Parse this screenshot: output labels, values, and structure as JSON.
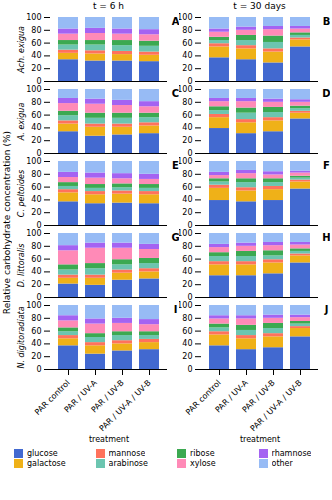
{
  "chart_data": [
    {
      "type": "bar",
      "stacked": true,
      "title": "A",
      "subtitle": "t = 6 h",
      "ylabel": "Ach. exigua",
      "tick_labels": "y",
      "grid": false,
      "categories": [
        "PAR control",
        "PAR / UV-A",
        "PAR / UV-B",
        "PAR / UV-A / UV-B"
      ],
      "ylim": [
        0,
        100
      ],
      "yticks": [
        0,
        20,
        40,
        60,
        80,
        100
      ],
      "series": [
        {
          "name": "glucose",
          "values": [
            34,
            32,
            32,
            31
          ]
        },
        {
          "name": "galactose",
          "values": [
            10,
            11,
            10,
            10
          ]
        },
        {
          "name": "mannose",
          "values": [
            5,
            5,
            5,
            5
          ]
        },
        {
          "name": "arabinose",
          "values": [
            8,
            9,
            9,
            9
          ]
        },
        {
          "name": "ribose",
          "values": [
            7,
            7,
            8,
            8
          ]
        },
        {
          "name": "xylose",
          "values": [
            10,
            11,
            10,
            10
          ]
        },
        {
          "name": "rhamnose",
          "values": [
            8,
            8,
            8,
            8
          ]
        },
        {
          "name": "other",
          "values": [
            18,
            17,
            18,
            19
          ]
        }
      ]
    },
    {
      "type": "bar",
      "stacked": true,
      "title": "B",
      "subtitle": "t = 30 days",
      "tick_labels": "y",
      "grid": false,
      "categories": [
        "PAR control",
        "PAR / UV-A",
        "PAR / UV-B",
        "PAR / UV-A / UV-B"
      ],
      "ylim": [
        0,
        100
      ],
      "yticks": [
        0,
        20,
        40,
        60,
        80,
        100
      ],
      "series": [
        {
          "name": "glucose",
          "values": [
            37,
            34,
            29,
            54
          ]
        },
        {
          "name": "galactose",
          "values": [
            17,
            17,
            17,
            11
          ]
        },
        {
          "name": "mannose",
          "values": [
            5,
            5,
            5,
            3
          ]
        },
        {
          "name": "arabinose",
          "values": [
            5,
            8,
            10,
            4
          ]
        },
        {
          "name": "ribose",
          "values": [
            5,
            8,
            10,
            4
          ]
        },
        {
          "name": "xylose",
          "values": [
            8,
            8,
            10,
            6
          ]
        },
        {
          "name": "rhamnose",
          "values": [
            5,
            5,
            5,
            4
          ]
        },
        {
          "name": "other",
          "values": [
            18,
            15,
            14,
            14
          ]
        }
      ]
    },
    {
      "type": "bar",
      "stacked": true,
      "title": "C",
      "ylabel": "A. exigua",
      "tick_labels": "y",
      "grid": false,
      "categories": [
        "PAR control",
        "PAR / UV-A",
        "PAR / UV-B",
        "PAR / UV-A / UV-B"
      ],
      "ylim": [
        0,
        100
      ],
      "yticks": [
        0,
        20,
        40,
        60,
        80,
        100
      ],
      "series": [
        {
          "name": "glucose",
          "values": [
            34,
            27,
            29,
            31
          ]
        },
        {
          "name": "galactose",
          "values": [
            12,
            14,
            12,
            12
          ]
        },
        {
          "name": "mannose",
          "values": [
            5,
            5,
            5,
            5
          ]
        },
        {
          "name": "arabinose",
          "values": [
            8,
            9,
            9,
            8
          ]
        },
        {
          "name": "ribose",
          "values": [
            7,
            8,
            8,
            7
          ]
        },
        {
          "name": "xylose",
          "values": [
            12,
            14,
            12,
            10
          ]
        },
        {
          "name": "rhamnose",
          "values": [
            8,
            8,
            8,
            8
          ]
        },
        {
          "name": "other",
          "values": [
            14,
            15,
            17,
            19
          ]
        }
      ]
    },
    {
      "type": "bar",
      "stacked": true,
      "title": "D",
      "tick_labels": "y",
      "grid": false,
      "categories": [
        "PAR control",
        "PAR / UV-A",
        "PAR / UV-B",
        "PAR / UV-A / UV-B"
      ],
      "ylim": [
        0,
        100
      ],
      "yticks": [
        0,
        20,
        40,
        60,
        80,
        100
      ],
      "series": [
        {
          "name": "glucose",
          "values": [
            39,
            31,
            34,
            54
          ]
        },
        {
          "name": "galactose",
          "values": [
            17,
            17,
            17,
            9
          ]
        },
        {
          "name": "mannose",
          "values": [
            5,
            5,
            5,
            3
          ]
        },
        {
          "name": "arabinose",
          "values": [
            6,
            10,
            8,
            4
          ]
        },
        {
          "name": "ribose",
          "values": [
            6,
            8,
            8,
            4
          ]
        },
        {
          "name": "xylose",
          "values": [
            8,
            10,
            8,
            6
          ]
        },
        {
          "name": "rhamnose",
          "values": [
            5,
            5,
            5,
            4
          ]
        },
        {
          "name": "other",
          "values": [
            14,
            14,
            15,
            16
          ]
        }
      ]
    },
    {
      "type": "bar",
      "stacked": true,
      "title": "E",
      "ylabel": "C. peltoides",
      "annotations": [
        "Relative carbohydrate concentration (%)"
      ],
      "tick_labels": "y",
      "grid": false,
      "categories": [
        "PAR control",
        "PAR / UV-A",
        "PAR / UV-B",
        "PAR / UV-A / UV-B"
      ],
      "ylim": [
        0,
        100
      ],
      "yticks": [
        0,
        20,
        40,
        60,
        80,
        100
      ],
      "series": [
        {
          "name": "glucose",
          "values": [
            37,
            34,
            35,
            34
          ]
        },
        {
          "name": "galactose",
          "values": [
            14,
            14,
            14,
            14
          ]
        },
        {
          "name": "mannose",
          "values": [
            5,
            5,
            5,
            5
          ]
        },
        {
          "name": "arabinose",
          "values": [
            5,
            5,
            5,
            5
          ]
        },
        {
          "name": "ribose",
          "values": [
            6,
            6,
            6,
            6
          ]
        },
        {
          "name": "xylose",
          "values": [
            8,
            10,
            8,
            8
          ]
        },
        {
          "name": "rhamnose",
          "values": [
            8,
            8,
            8,
            8
          ]
        },
        {
          "name": "other",
          "values": [
            17,
            18,
            19,
            20
          ]
        }
      ]
    },
    {
      "type": "bar",
      "stacked": true,
      "title": "F",
      "tick_labels": "y",
      "grid": false,
      "categories": [
        "PAR control",
        "PAR / UV-A",
        "PAR / UV-B",
        "PAR / UV-A / UV-B"
      ],
      "ylim": [
        0,
        100
      ],
      "yticks": [
        0,
        20,
        40,
        60,
        80,
        100
      ],
      "series": [
        {
          "name": "glucose",
          "values": [
            39,
            37,
            39,
            57
          ]
        },
        {
          "name": "galactose",
          "values": [
            19,
            17,
            17,
            11
          ]
        },
        {
          "name": "mannose",
          "values": [
            5,
            5,
            5,
            3
          ]
        },
        {
          "name": "arabinose",
          "values": [
            5,
            8,
            6,
            3
          ]
        },
        {
          "name": "ribose",
          "values": [
            5,
            6,
            6,
            3
          ]
        },
        {
          "name": "xylose",
          "values": [
            5,
            8,
            6,
            5
          ]
        },
        {
          "name": "rhamnose",
          "values": [
            5,
            5,
            5,
            3
          ]
        },
        {
          "name": "other",
          "values": [
            17,
            14,
            16,
            15
          ]
        }
      ]
    },
    {
      "type": "bar",
      "stacked": true,
      "title": "G",
      "ylabel": "D. littoralis",
      "tick_labels": "y",
      "grid": false,
      "categories": [
        "PAR control",
        "PAR / UV-A",
        "PAR / UV-B",
        "PAR / UV-A / UV-B"
      ],
      "ylim": [
        0,
        100
      ],
      "yticks": [
        0,
        20,
        40,
        60,
        80,
        100
      ],
      "series": [
        {
          "name": "glucose",
          "values": [
            21,
            19,
            27,
            29
          ]
        },
        {
          "name": "galactose",
          "values": [
            9,
            11,
            11,
            11
          ]
        },
        {
          "name": "mannose",
          "values": [
            5,
            5,
            5,
            5
          ]
        },
        {
          "name": "arabinose",
          "values": [
            8,
            10,
            8,
            8
          ]
        },
        {
          "name": "ribose",
          "values": [
            8,
            8,
            8,
            8
          ]
        },
        {
          "name": "xylose",
          "values": [
            22,
            24,
            18,
            14
          ]
        },
        {
          "name": "rhamnose",
          "values": [
            8,
            8,
            8,
            8
          ]
        },
        {
          "name": "other",
          "values": [
            19,
            15,
            15,
            17
          ]
        }
      ]
    },
    {
      "type": "bar",
      "stacked": true,
      "title": "H",
      "tick_labels": "y",
      "grid": false,
      "categories": [
        "PAR control",
        "PAR / UV-A",
        "PAR / UV-B",
        "PAR / UV-A / UV-B"
      ],
      "ylim": [
        0,
        100
      ],
      "yticks": [
        0,
        20,
        40,
        60,
        80,
        100
      ],
      "series": [
        {
          "name": "glucose",
          "values": [
            34,
            34,
            37,
            54
          ]
        },
        {
          "name": "galactose",
          "values": [
            17,
            17,
            17,
            11
          ]
        },
        {
          "name": "mannose",
          "values": [
            5,
            5,
            5,
            3
          ]
        },
        {
          "name": "arabinose",
          "values": [
            8,
            8,
            6,
            4
          ]
        },
        {
          "name": "ribose",
          "values": [
            6,
            8,
            8,
            4
          ]
        },
        {
          "name": "xylose",
          "values": [
            8,
            8,
            8,
            6
          ]
        },
        {
          "name": "rhamnose",
          "values": [
            5,
            5,
            5,
            4
          ]
        },
        {
          "name": "other",
          "values": [
            17,
            15,
            14,
            14
          ]
        }
      ]
    },
    {
      "type": "bar",
      "stacked": true,
      "title": "I",
      "ylabel": "N. digitoradiata",
      "xlabel": "treatment",
      "grid": false,
      "categories": [
        "PAR control",
        "PAR / UV-A",
        "PAR / UV-B",
        "PAR / UV-A / UV-B"
      ],
      "ylim": [
        0,
        100
      ],
      "yticks": [
        0,
        20,
        40,
        60,
        80,
        100
      ],
      "series": [
        {
          "name": "glucose",
          "values": [
            37,
            24,
            29,
            31
          ]
        },
        {
          "name": "galactose",
          "values": [
            11,
            13,
            11,
            11
          ]
        },
        {
          "name": "mannose",
          "values": [
            5,
            5,
            5,
            5
          ]
        },
        {
          "name": "arabinose",
          "values": [
            6,
            8,
            8,
            6
          ]
        },
        {
          "name": "ribose",
          "values": [
            6,
            6,
            6,
            6
          ]
        },
        {
          "name": "xylose",
          "values": [
            11,
            15,
            13,
            11
          ]
        },
        {
          "name": "rhamnose",
          "values": [
            8,
            8,
            8,
            8
          ]
        },
        {
          "name": "other",
          "values": [
            16,
            21,
            20,
            22
          ]
        }
      ]
    },
    {
      "type": "bar",
      "stacked": true,
      "title": "J",
      "xlabel": "treatment",
      "legend": "bottom",
      "grid": false,
      "categories": [
        "PAR control",
        "PAR / UV-A",
        "PAR / UV-B",
        "PAR / UV-A / UV-B"
      ],
      "ylim": [
        0,
        100
      ],
      "yticks": [
        0,
        20,
        40,
        60,
        80,
        100
      ],
      "series": [
        {
          "name": "glucose",
          "values": [
            37,
            31,
            34,
            51
          ]
        },
        {
          "name": "galactose",
          "values": [
            17,
            17,
            17,
            13
          ]
        },
        {
          "name": "mannose",
          "values": [
            5,
            5,
            5,
            3
          ]
        },
        {
          "name": "arabinose",
          "values": [
            6,
            8,
            8,
            4
          ]
        },
        {
          "name": "ribose",
          "values": [
            6,
            8,
            8,
            4
          ]
        },
        {
          "name": "xylose",
          "values": [
            8,
            10,
            8,
            6
          ]
        },
        {
          "name": "rhamnose",
          "values": [
            5,
            5,
            5,
            4
          ]
        },
        {
          "name": "other",
          "values": [
            16,
            16,
            15,
            15
          ]
        }
      ]
    }
  ]
}
